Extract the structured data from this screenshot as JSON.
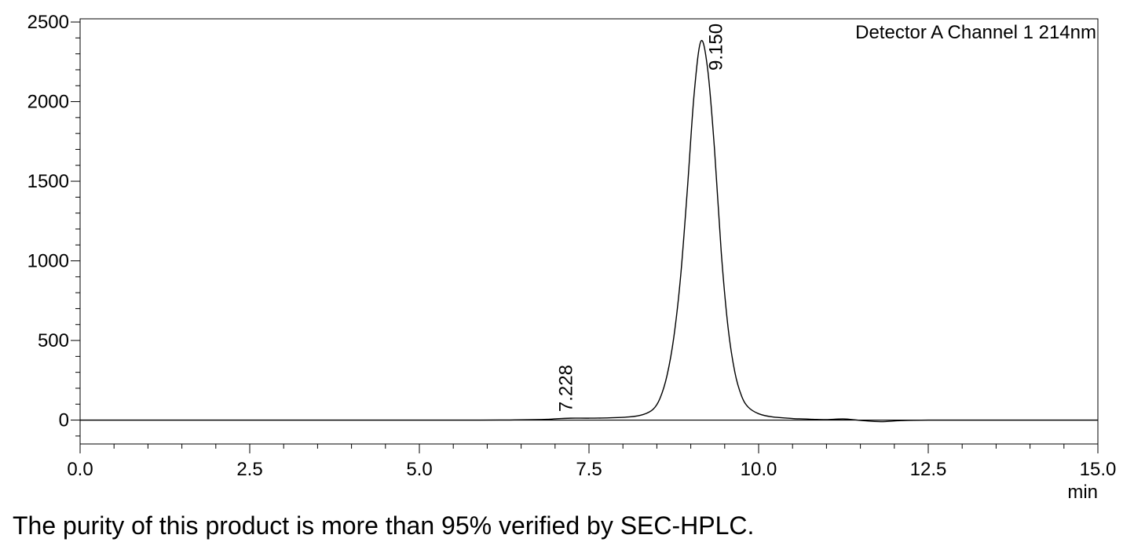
{
  "chart_data": {
    "type": "line",
    "title": "",
    "xlabel": "min",
    "ylabel": "",
    "xlim": [
      0.0,
      15.0
    ],
    "ylim": [
      -150,
      2520
    ],
    "x_ticks": [
      "0.0",
      "2.5",
      "5.0",
      "7.5",
      "10.0",
      "12.5",
      "15.0"
    ],
    "y_ticks": [
      "0",
      "500",
      "1000",
      "1500",
      "2000",
      "2500"
    ],
    "series": [
      {
        "name": "Detector A Channel 1 214nm",
        "color": "#000000",
        "x": [
          0.0,
          5.5,
          6.5,
          6.9,
          7.0,
          7.228,
          7.5,
          7.8,
          8.1,
          8.3,
          8.45,
          8.55,
          8.65,
          8.75,
          8.85,
          8.95,
          9.05,
          9.15,
          9.25,
          9.35,
          9.45,
          9.55,
          9.65,
          9.75,
          9.85,
          10.0,
          10.2,
          10.5,
          10.8,
          11.0,
          11.25,
          11.5,
          11.8,
          12.1,
          12.5,
          13.5,
          15.0
        ],
        "y": [
          0,
          0,
          2,
          5,
          8,
          12,
          12,
          14,
          20,
          35,
          70,
          140,
          280,
          520,
          900,
          1450,
          2050,
          2380,
          2200,
          1700,
          1050,
          580,
          300,
          150,
          80,
          40,
          20,
          10,
          5,
          3,
          7,
          -2,
          -10,
          -3,
          0,
          0,
          0
        ]
      }
    ],
    "peak_labels": [
      {
        "x": 7.228,
        "y": 12,
        "label": "7.228"
      },
      {
        "x": 9.15,
        "y": 2380,
        "label": "9.150"
      }
    ],
    "legend": {
      "text": "Detector A Channel 1 214nm",
      "position": "top-right"
    },
    "baseline": 0,
    "grid": false
  },
  "caption": "The purity of this product is more than 95% verified by SEC-HPLC."
}
